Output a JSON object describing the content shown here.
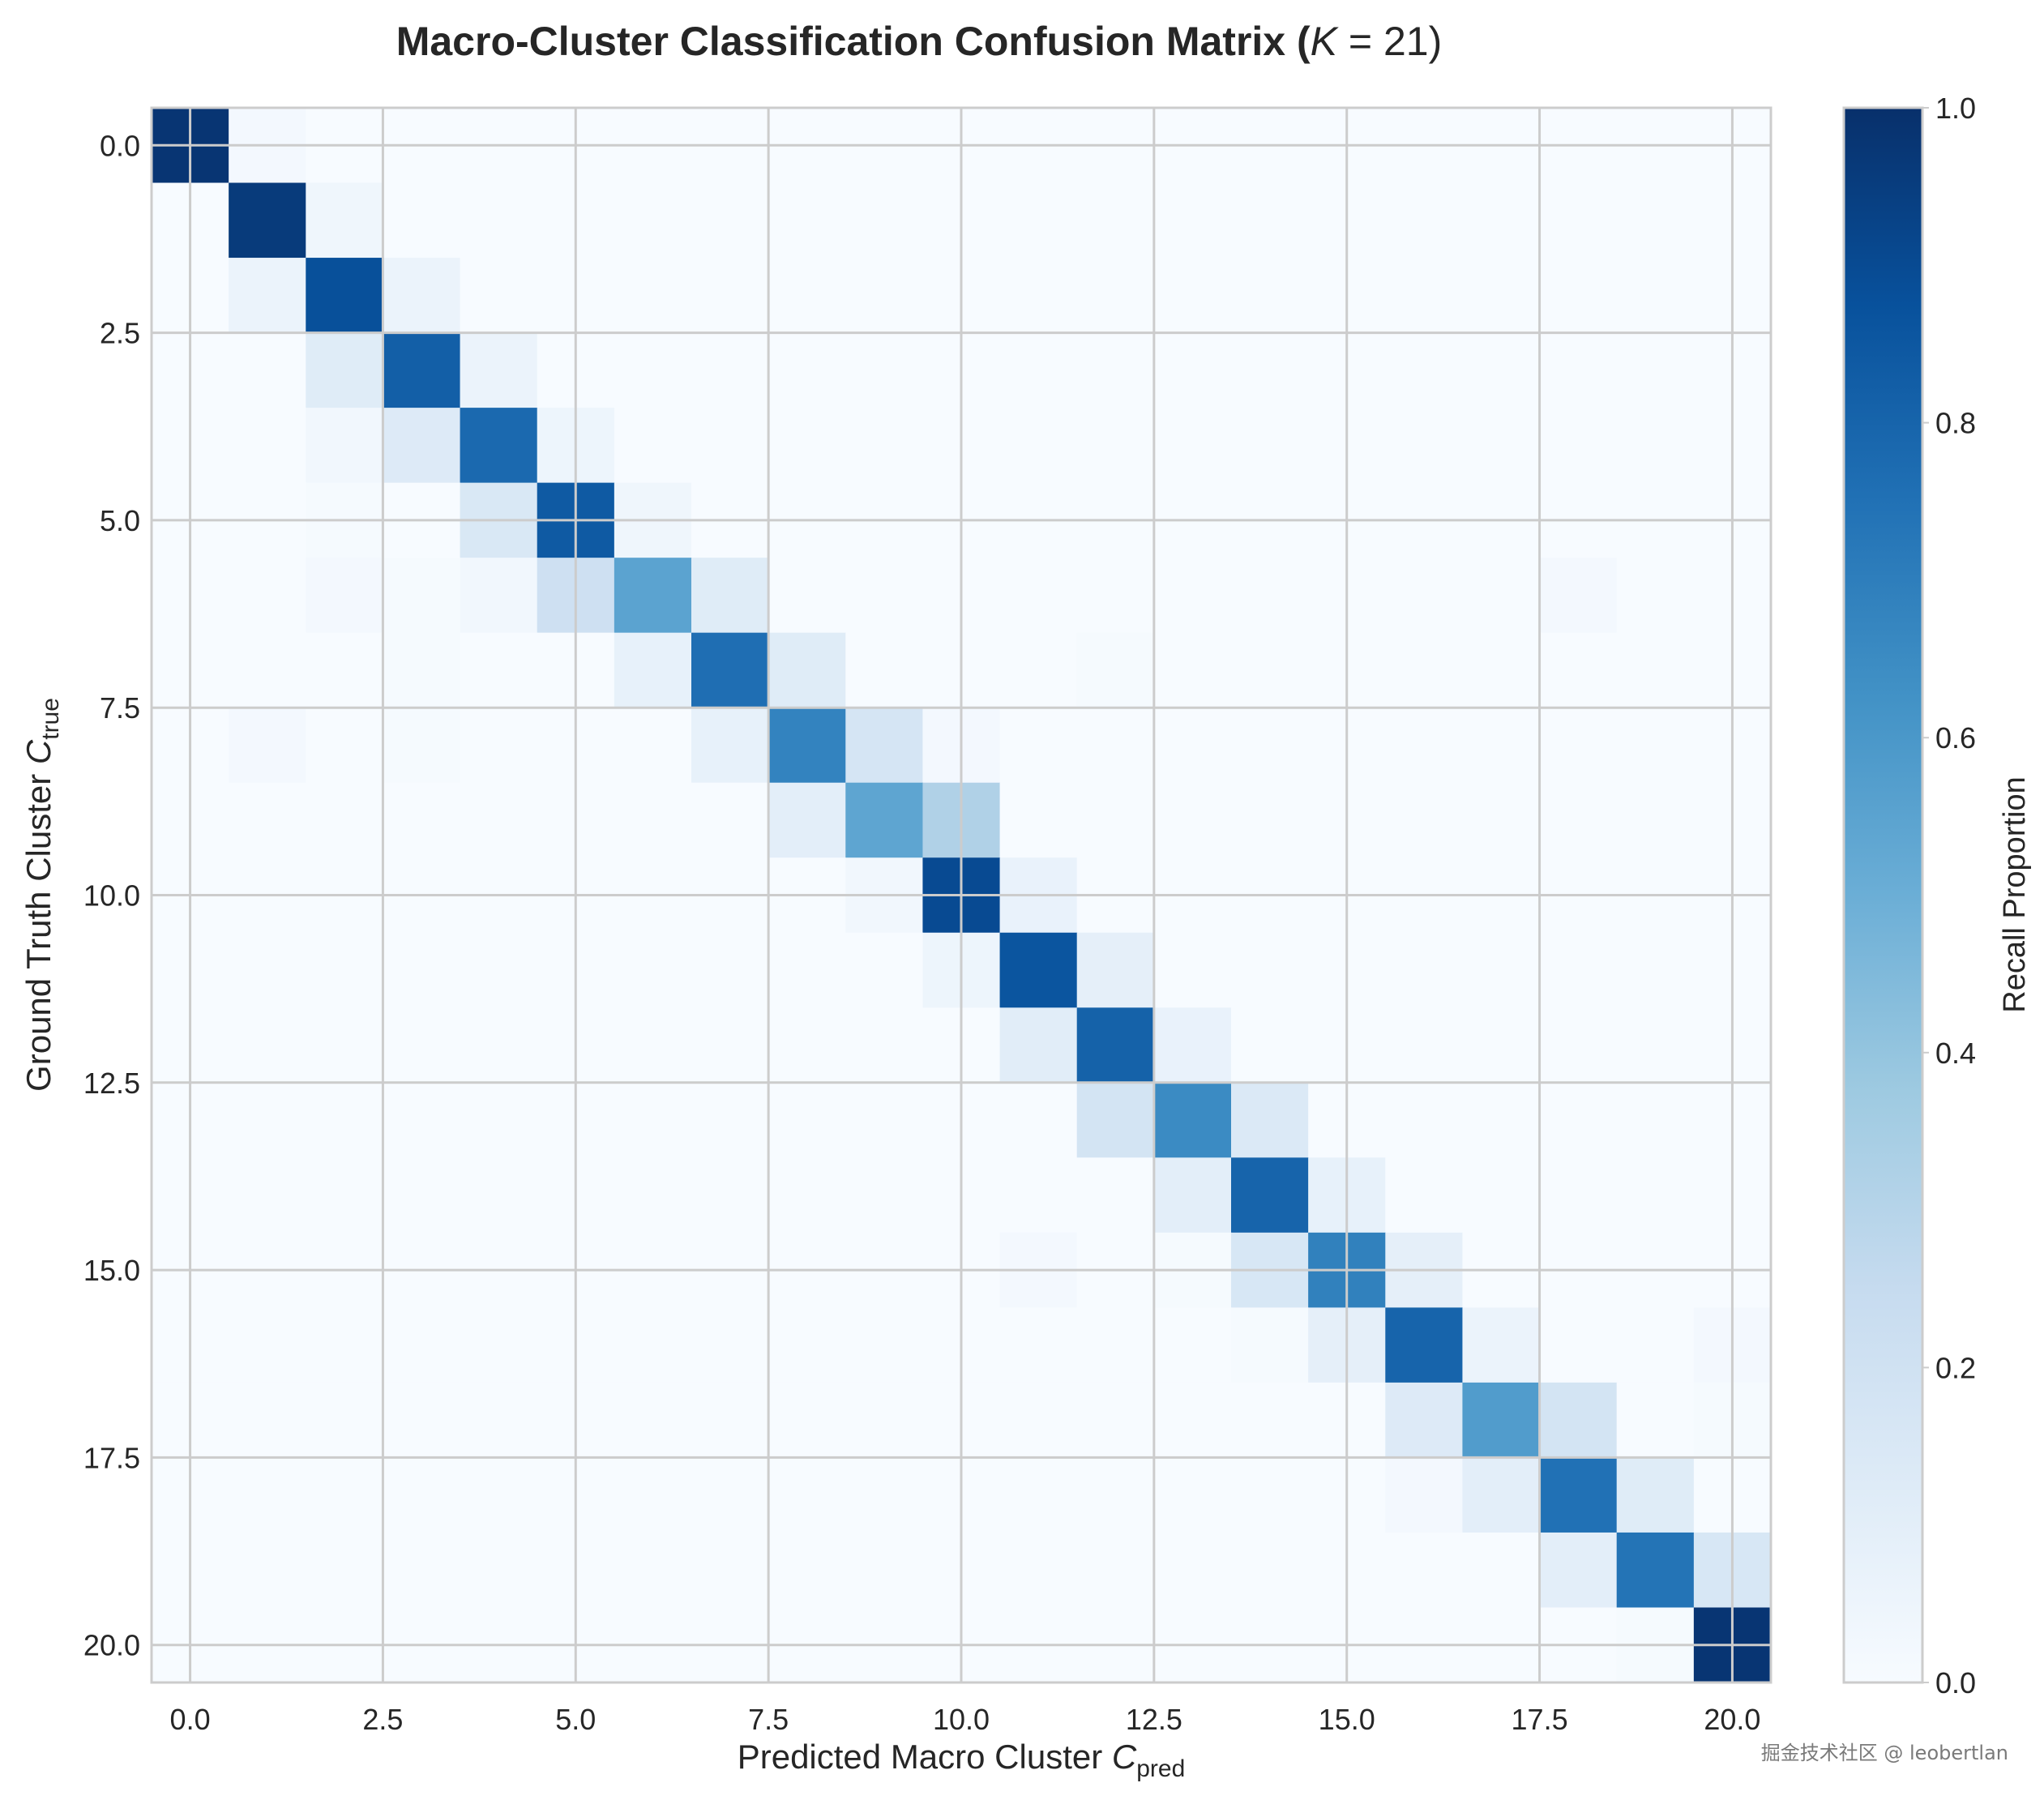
{
  "chart_data": {
    "type": "heatmap",
    "title": "Macro-Cluster Classification Confusion Matrix (K = 21)",
    "title_parts": {
      "prefix": "Macro-Cluster Classification Confusion Matrix (",
      "var": "K",
      "suffix": " = 21)"
    },
    "xlabel": "Predicted Macro Cluster C_pred",
    "xlabel_parts": {
      "main": "Predicted Macro Cluster ",
      "var": "C",
      "sub": "pred"
    },
    "ylabel": "Ground Truth Cluster C_true",
    "ylabel_parts": {
      "main": "Ground Truth Cluster ",
      "var": "C",
      "sub": "true"
    },
    "x_ticks": [
      "0.0",
      "2.5",
      "5.0",
      "7.5",
      "10.0",
      "12.5",
      "15.0",
      "17.5",
      "20.0"
    ],
    "y_ticks": [
      "0.0",
      "2.5",
      "5.0",
      "7.5",
      "10.0",
      "12.5",
      "15.0",
      "17.5",
      "20.0"
    ],
    "xlim": [
      -0.5,
      20.5
    ],
    "ylim": [
      20.5,
      -0.5
    ],
    "colorbar": {
      "label": "Recall Proportion",
      "ticks": [
        "0.0",
        "0.2",
        "0.4",
        "0.6",
        "0.8",
        "1.0"
      ],
      "range": [
        0,
        1
      ],
      "colormap": "Blues"
    },
    "grid": true,
    "watermark": "掘金技术社区 @ leobertlan",
    "n": 21,
    "matrix": [
      [
        0.98,
        0.02,
        0,
        0,
        0,
        0,
        0,
        0,
        0,
        0,
        0,
        0,
        0,
        0,
        0,
        0,
        0,
        0,
        0,
        0,
        0
      ],
      [
        0,
        0.96,
        0.04,
        0,
        0,
        0,
        0,
        0,
        0,
        0,
        0,
        0,
        0,
        0,
        0,
        0,
        0,
        0,
        0,
        0,
        0
      ],
      [
        0,
        0.06,
        0.88,
        0.06,
        0,
        0,
        0,
        0,
        0,
        0,
        0,
        0,
        0,
        0,
        0,
        0,
        0,
        0,
        0,
        0,
        0
      ],
      [
        0,
        0,
        0.12,
        0.82,
        0.06,
        0,
        0,
        0,
        0,
        0,
        0,
        0,
        0,
        0,
        0,
        0,
        0,
        0,
        0,
        0,
        0
      ],
      [
        0,
        0,
        0.03,
        0.13,
        0.78,
        0.05,
        0,
        0,
        0,
        0,
        0,
        0,
        0,
        0,
        0,
        0,
        0,
        0,
        0,
        0,
        0
      ],
      [
        0,
        0,
        0.01,
        0,
        0.15,
        0.84,
        0.04,
        0,
        0,
        0,
        0,
        0,
        0,
        0,
        0,
        0,
        0,
        0,
        0,
        0,
        0
      ],
      [
        0,
        0,
        0.02,
        0.01,
        0.03,
        0.21,
        0.55,
        0.12,
        0,
        0,
        0,
        0,
        0,
        0,
        0,
        0,
        0,
        0,
        0.02,
        0,
        0
      ],
      [
        0,
        0,
        0,
        0.01,
        0,
        0,
        0.08,
        0.76,
        0.12,
        0,
        0,
        0,
        0.01,
        0,
        0,
        0,
        0,
        0,
        0,
        0,
        0
      ],
      [
        0,
        0.02,
        0,
        0.01,
        0,
        0,
        0,
        0.08,
        0.68,
        0.17,
        0.02,
        0,
        0,
        0,
        0,
        0,
        0,
        0,
        0,
        0,
        0
      ],
      [
        0,
        0,
        0,
        0,
        0,
        0,
        0,
        0,
        0.1,
        0.54,
        0.32,
        0,
        0,
        0,
        0,
        0,
        0,
        0,
        0,
        0,
        0
      ],
      [
        0,
        0,
        0,
        0,
        0,
        0,
        0,
        0,
        0,
        0.03,
        0.9,
        0.07,
        0,
        0,
        0,
        0,
        0,
        0,
        0,
        0,
        0
      ],
      [
        0,
        0,
        0,
        0,
        0,
        0,
        0,
        0,
        0,
        0,
        0.05,
        0.86,
        0.09,
        0,
        0,
        0,
        0,
        0,
        0,
        0,
        0
      ],
      [
        0,
        0,
        0,
        0,
        0,
        0,
        0,
        0,
        0,
        0,
        0,
        0.11,
        0.81,
        0.07,
        0,
        0,
        0,
        0,
        0,
        0,
        0
      ],
      [
        0,
        0,
        0,
        0,
        0,
        0,
        0,
        0,
        0,
        0,
        0,
        0,
        0.18,
        0.65,
        0.14,
        0,
        0,
        0,
        0,
        0,
        0
      ],
      [
        0,
        0,
        0,
        0,
        0,
        0,
        0,
        0,
        0,
        0,
        0,
        0,
        0,
        0.1,
        0.8,
        0.08,
        0,
        0,
        0,
        0,
        0
      ],
      [
        0,
        0,
        0,
        0,
        0,
        0,
        0,
        0,
        0,
        0,
        0,
        0.02,
        0,
        0.01,
        0.16,
        0.69,
        0.09,
        0,
        0,
        0,
        0
      ],
      [
        0,
        0,
        0,
        0,
        0,
        0,
        0,
        0,
        0,
        0,
        0,
        0,
        0,
        0,
        0.01,
        0.09,
        0.8,
        0.06,
        0,
        0,
        0.02
      ],
      [
        0,
        0,
        0,
        0,
        0,
        0,
        0,
        0,
        0,
        0,
        0,
        0,
        0,
        0,
        0,
        0,
        0.13,
        0.58,
        0.18,
        0,
        0.01
      ],
      [
        0,
        0,
        0,
        0,
        0,
        0,
        0,
        0,
        0,
        0,
        0,
        0,
        0,
        0,
        0,
        0,
        0.02,
        0.1,
        0.75,
        0.12,
        0
      ],
      [
        0,
        0,
        0,
        0,
        0,
        0,
        0,
        0,
        0,
        0,
        0,
        0,
        0,
        0,
        0,
        0,
        0,
        0,
        0.1,
        0.74,
        0.16
      ],
      [
        0,
        0,
        0,
        0,
        0,
        0,
        0,
        0,
        0,
        0,
        0,
        0,
        0,
        0,
        0,
        0,
        0,
        0,
        0,
        0.01,
        0.98
      ]
    ]
  }
}
